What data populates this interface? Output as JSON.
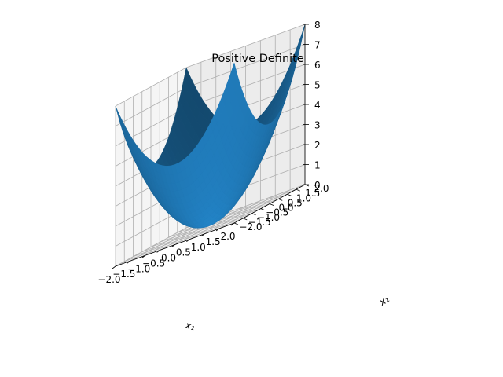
{
  "chart_data": {
    "type": "surface",
    "title": "Positive Definite",
    "xlabel": "x₁",
    "ylabel": "x₂",
    "zlabel": "",
    "function": "z = x1^2 + x2^2",
    "xlim": [
      -2.0,
      2.0
    ],
    "ylim": [
      -2.0,
      2.0
    ],
    "zlim": [
      0,
      8
    ],
    "x_ticks": [
      "−2.0",
      "−1.5",
      "−1.0",
      "−0.5",
      "0.0",
      "0.5",
      "1.0",
      "1.5",
      "2.0"
    ],
    "y_ticks": [
      "−2.0",
      "−1.5",
      "−1.0",
      "−0.5",
      "0.0",
      "0.5",
      "1.0",
      "1.5",
      "2.0"
    ],
    "z_ticks": [
      "0",
      "1",
      "2",
      "3",
      "4",
      "5",
      "6",
      "7",
      "8"
    ],
    "grid": true,
    "colors": {
      "surface": "#1f77b4",
      "pane_floor": "#f2f2f2",
      "pane_back": "#ececec",
      "pane_side": "#f5f5f5",
      "grid": "#b0b0b0"
    }
  }
}
